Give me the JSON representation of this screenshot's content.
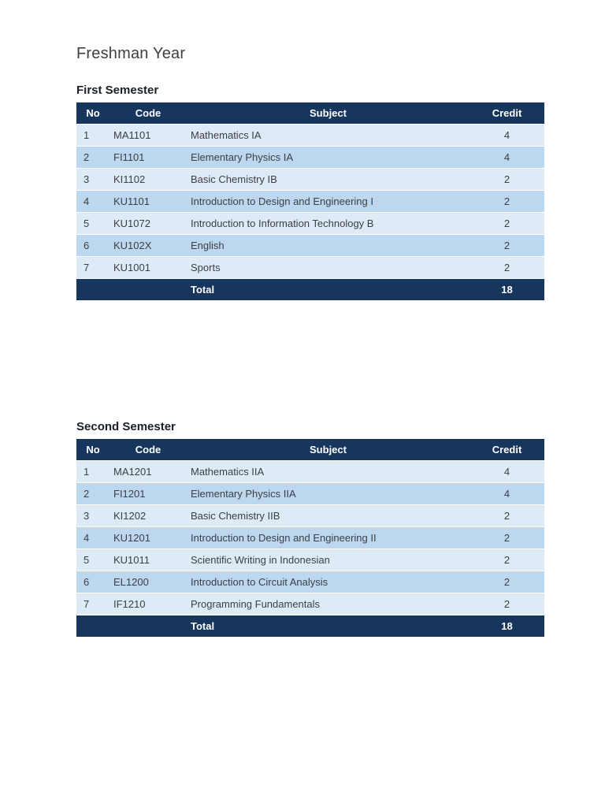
{
  "page": {
    "title": "Freshman Year"
  },
  "colors": {
    "table_header_bg": "#17365d",
    "row_light": "#deeaf6",
    "row_alt": "#bdd7ee",
    "total_bg": "#17365d",
    "header_text": "#ffffff"
  },
  "tables": [
    {
      "heading": "First Semester",
      "columns": [
        "No",
        "Code",
        "Subject",
        "Credit"
      ],
      "rows": [
        [
          "1",
          "MA1101",
          "Mathematics IA",
          "4"
        ],
        [
          "2",
          "FI1101",
          "Elementary Physics IA",
          "4"
        ],
        [
          "3",
          "KI1102",
          "Basic Chemistry IB",
          "2"
        ],
        [
          "4",
          "KU1101",
          "Introduction to Design and Engineering I",
          "2"
        ],
        [
          "5",
          "KU1072",
          "Introduction to Information Technology B",
          "2"
        ],
        [
          "6",
          "KU102X",
          "English",
          "2"
        ],
        [
          "7",
          "KU1001",
          "Sports",
          "2"
        ]
      ],
      "total": {
        "label": "Total",
        "value": "18"
      }
    },
    {
      "heading": "Second Semester",
      "columns": [
        "No",
        "Code",
        "Subject",
        "Credit"
      ],
      "rows": [
        [
          "1",
          "MA1201",
          "Mathematics IIA",
          "4"
        ],
        [
          "2",
          "FI1201",
          "Elementary Physics IIA",
          "4"
        ],
        [
          "3",
          "KI1202",
          "Basic Chemistry IIB",
          "2"
        ],
        [
          "4",
          "KU1201",
          "Introduction to Design and Engineering II",
          "2"
        ],
        [
          "5",
          "KU1011",
          "Scientific Writing in Indonesian",
          "2"
        ],
        [
          "6",
          "EL1200",
          "Introduction to Circuit Analysis",
          "2"
        ],
        [
          "7",
          "IF1210",
          "Programming Fundamentals",
          "2"
        ]
      ],
      "total": {
        "label": "Total",
        "value": "18"
      }
    }
  ]
}
